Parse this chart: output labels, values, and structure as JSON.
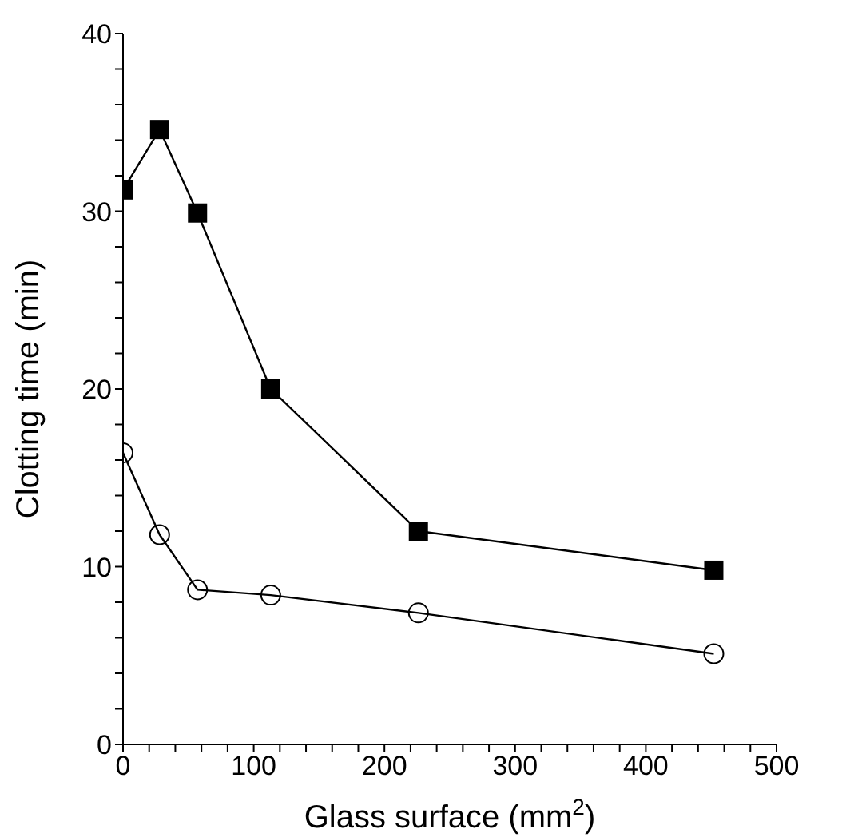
{
  "chart_data": {
    "type": "line",
    "xlabel": "Glass surface (mm$^{2}$)",
    "ylabel": "Clotting time (min)",
    "xlim": [
      0,
      500
    ],
    "ylim": [
      0,
      40
    ],
    "xticks": [
      0,
      {
        "value": 20,
        "label": null
      },
      {
        "value": 40,
        "label": null
      },
      {
        "value": 60,
        "label": null
      },
      {
        "value": 80,
        "label": null
      },
      100,
      {
        "value": 120,
        "label": null
      },
      {
        "value": 140,
        "label": null
      },
      {
        "value": 160,
        "label": null
      },
      {
        "value": 180,
        "label": null
      },
      200,
      {
        "value": 220,
        "label": null
      },
      {
        "value": 240,
        "label": null
      },
      {
        "value": 260,
        "label": null
      },
      {
        "value": 280,
        "label": null
      },
      300,
      {
        "value": 320,
        "label": null
      },
      {
        "value": 340,
        "label": null
      },
      {
        "value": 360,
        "label": null
      },
      {
        "value": 380,
        "label": null
      },
      400,
      {
        "value": 420,
        "label": null
      },
      {
        "value": 440,
        "label": null
      },
      {
        "value": 460,
        "label": null
      },
      {
        "value": 480,
        "label": null
      },
      500
    ],
    "yticks": [
      0,
      {
        "value": 2,
        "label": null
      },
      {
        "value": 4,
        "label": null
      },
      {
        "value": 6,
        "label": null
      },
      {
        "value": 8,
        "label": null
      },
      10,
      {
        "value": 12,
        "label": null
      },
      {
        "value": 14,
        "label": null
      },
      {
        "value": 16,
        "label": null
      },
      {
        "value": 18,
        "label": null
      },
      20,
      {
        "value": 22,
        "label": null
      },
      {
        "value": 24,
        "label": null
      },
      {
        "value": 26,
        "label": null
      },
      {
        "value": 28,
        "label": null
      },
      30,
      {
        "value": 32,
        "label": null
      },
      {
        "value": 34,
        "label": null
      },
      {
        "value": 36,
        "label": null
      },
      {
        "value": 38,
        "label": null
      },
      40
    ],
    "grid": false,
    "legend": false,
    "line_style": "solid",
    "series": [
      {
        "color": "#000000",
        "marker": "square",
        "x": [
          0,
          28,
          57,
          113,
          226,
          452
        ],
        "values": [
          31.2,
          34.6,
          29.9,
          20.0,
          12.0,
          9.8
        ]
      },
      {
        "color": "#000000",
        "marker": "circle",
        "x": [
          0,
          28,
          57,
          113,
          226,
          452
        ],
        "values": [
          16.4,
          11.8,
          8.7,
          8.4,
          7.4,
          5.1
        ]
      }
    ]
  }
}
